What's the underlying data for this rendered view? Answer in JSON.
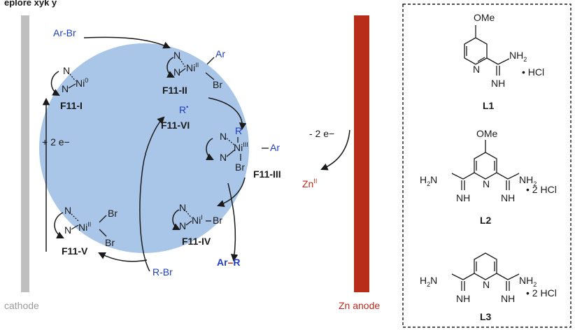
{
  "header": {
    "fragment": "eplore xyk y"
  },
  "electrodes": {
    "cathode": "cathode",
    "anode": "Zn anode",
    "cathode_transfer": "+ 2 e−",
    "anode_transfer": "- 2 e−",
    "anode_product": "Zn",
    "anode_product_ox": "II"
  },
  "species": {
    "f11_i": {
      "label": "F11-I",
      "ni": "Ni",
      "ox": "0"
    },
    "f11_ii": {
      "label": "F11-II",
      "ni": "Ni",
      "ox": "II",
      "ar": "Ar",
      "br": "Br"
    },
    "f11_iii": {
      "label": "F11-III",
      "ni": "Ni",
      "ox": "III",
      "ar": "Ar",
      "br": "Br",
      "r": "R"
    },
    "f11_iv": {
      "label": "F11-IV",
      "ni": "Ni",
      "ox": "I",
      "br": "Br"
    },
    "f11_v": {
      "label": "F11-V",
      "ni": "Ni",
      "ox": "II",
      "br1": "Br",
      "br2": "Br"
    },
    "f11_vi": {
      "label": "F11-VI",
      "r": "R",
      "dot": "•"
    }
  },
  "reagents": {
    "arbr": "Ar-Br",
    "rbr": "R-Br",
    "product_ar": "Ar",
    "product_dash": "–",
    "product_r": "R"
  },
  "ligands": [
    {
      "label": "L1",
      "ome": "OMe",
      "nh2": "NH",
      "nh2_sub": "2",
      "nh": "NH",
      "salt": "• HCl"
    },
    {
      "label": "L2",
      "ome": "OMe",
      "h2n": "H",
      "h2n_sub": "2",
      "h2n_n": "N",
      "nh2": "NH",
      "nh2_sub": "2",
      "nh_l": "NH",
      "nh_r": "NH",
      "salt": "• 2 HCl"
    },
    {
      "label": "L3",
      "h2n": "H",
      "h2n_sub": "2",
      "h2n_n": "N",
      "nh2": "NH",
      "nh2_sub": "2",
      "nh_l": "NH",
      "nh_r": "NH",
      "salt": "• 2 HCl"
    }
  ],
  "atom": {
    "N": "N"
  },
  "colors": {
    "cycle_fill": "#a9c6e8",
    "anode": "#b82d1a",
    "cathode": "#bfbfbf",
    "blue_text": "#1f3fbf",
    "red_text": "#c0281b"
  }
}
